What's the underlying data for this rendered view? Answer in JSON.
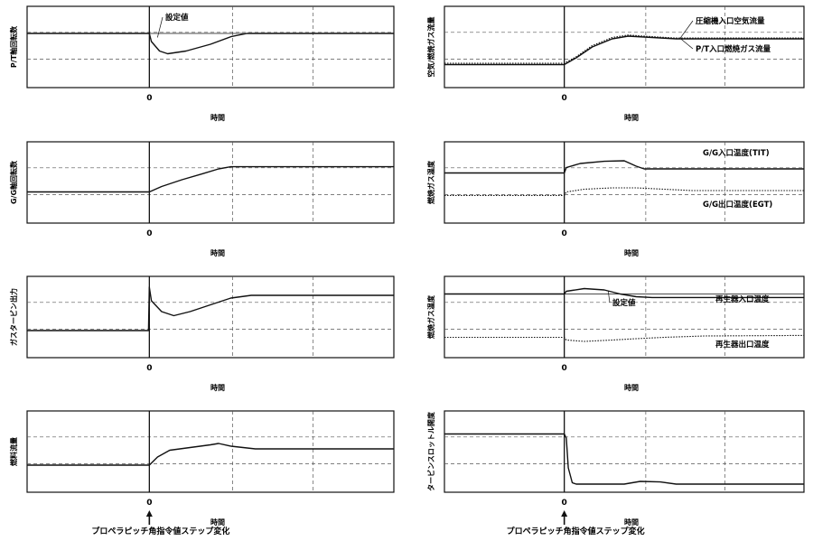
{
  "chart_data": [
    {
      "type": "line",
      "ylabel": "P/T軸回転数",
      "xlabel": "時間",
      "x_tick": "0",
      "annotations": [
        "設定値"
      ],
      "series": [
        {
          "name": "",
          "style": "solid",
          "points": [
            [
              -3,
              0.5
            ],
            [
              0,
              0.5
            ],
            [
              0.05,
              0.2
            ],
            [
              0.25,
              -0.15
            ],
            [
              0.45,
              -0.25
            ],
            [
              0.9,
              -0.15
            ],
            [
              1.5,
              0.1
            ],
            [
              2,
              0.38
            ],
            [
              2.4,
              0.5
            ],
            [
              6,
              0.5
            ]
          ]
        },
        {
          "name": "設定値",
          "style": "thin",
          "points": [
            [
              -3,
              0.5
            ],
            [
              6,
              0.5
            ]
          ]
        }
      ]
    },
    {
      "type": "line",
      "ylabel": "G/G軸回転数",
      "xlabel": "時間",
      "x_tick": "0",
      "annotations": [],
      "series": [
        {
          "name": "",
          "style": "solid",
          "points": [
            [
              -3,
              -0.35
            ],
            [
              0,
              -0.35
            ],
            [
              0.3,
              -0.15
            ],
            [
              0.8,
              0.1
            ],
            [
              1.3,
              0.32
            ],
            [
              1.7,
              0.5
            ],
            [
              2,
              0.58
            ],
            [
              6,
              0.58
            ]
          ]
        }
      ]
    },
    {
      "type": "line",
      "ylabel": "ガスタービン出力",
      "xlabel": "時間",
      "x_tick": "0",
      "annotations": [],
      "series": [
        {
          "name": "",
          "style": "solid",
          "points": [
            [
              -3,
              -0.5
            ],
            [
              -0.02,
              -0.5
            ],
            [
              0,
              1.1
            ],
            [
              0.05,
              0.6
            ],
            [
              0.3,
              0.2
            ],
            [
              0.6,
              0.05
            ],
            [
              1,
              0.2
            ],
            [
              1.6,
              0.5
            ],
            [
              2,
              0.7
            ],
            [
              2.5,
              0.8
            ],
            [
              6,
              0.8
            ]
          ]
        }
      ]
    },
    {
      "type": "line",
      "ylabel": "燃料流量",
      "xlabel": "時間",
      "x_tick": "0",
      "annotations": [],
      "series": [
        {
          "name": "",
          "style": "solid",
          "points": [
            [
              -3,
              -0.5
            ],
            [
              0,
              -0.5
            ],
            [
              0.2,
              -0.2
            ],
            [
              0.5,
              0.05
            ],
            [
              1,
              0.15
            ],
            [
              1.5,
              0.25
            ],
            [
              1.7,
              0.3
            ],
            [
              2,
              0.2
            ],
            [
              2.6,
              0.1
            ],
            [
              6,
              0.1
            ]
          ]
        }
      ]
    },
    {
      "type": "line",
      "ylabel": "空気/燃焼ガス流量",
      "xlabel": "時間",
      "x_tick": "0",
      "annotations": [
        "圧縮機入口空気流量",
        "P/T入口燃焼ガス流量"
      ],
      "series": [
        {
          "name": "圧縮機入口空気流量",
          "style": "solid",
          "points": [
            [
              -3,
              -0.65
            ],
            [
              0,
              -0.65
            ],
            [
              0.3,
              -0.4
            ],
            [
              0.7,
              0
            ],
            [
              1.2,
              0.3
            ],
            [
              1.6,
              0.4
            ],
            [
              2.2,
              0.35
            ],
            [
              2.8,
              0.3
            ],
            [
              6,
              0.3
            ]
          ]
        },
        {
          "name": "P/T入口燃焼ガス流量",
          "style": "dotted",
          "points": [
            [
              -3,
              -0.6
            ],
            [
              0,
              -0.6
            ],
            [
              0.3,
              -0.36
            ],
            [
              0.7,
              0.05
            ],
            [
              1.2,
              0.35
            ],
            [
              1.6,
              0.44
            ],
            [
              2.2,
              0.38
            ],
            [
              2.8,
              0.33
            ],
            [
              6,
              0.33
            ]
          ]
        }
      ]
    },
    {
      "type": "line",
      "ylabel": "燃焼ガス温度",
      "xlabel": "時間",
      "x_tick": "0",
      "annotations": [
        "G/G入口温度(TIT)",
        "G/G出口温度(EGT)"
      ],
      "series": [
        {
          "name": "G/G入口温度(TIT)",
          "style": "solid",
          "points": [
            [
              -3,
              0.35
            ],
            [
              0,
              0.35
            ],
            [
              0.05,
              0.55
            ],
            [
              0.4,
              0.7
            ],
            [
              1,
              0.78
            ],
            [
              1.5,
              0.8
            ],
            [
              1.8,
              0.6
            ],
            [
              2,
              0.5
            ],
            [
              6,
              0.5
            ]
          ]
        },
        {
          "name": "G/G出口温度(EGT)",
          "style": "dotted",
          "points": [
            [
              -3,
              -0.48
            ],
            [
              0,
              -0.48
            ],
            [
              0.05,
              -0.35
            ],
            [
              0.5,
              -0.25
            ],
            [
              1.2,
              -0.2
            ],
            [
              1.8,
              -0.2
            ],
            [
              2.5,
              -0.25
            ],
            [
              3.2,
              -0.3
            ],
            [
              6,
              -0.3
            ]
          ]
        }
      ]
    },
    {
      "type": "line",
      "ylabel": "燃焼ガス温度",
      "xlabel": "時間",
      "x_tick": "0",
      "annotations": [
        "設定値",
        "再生器入口温度",
        "再生器出口温度"
      ],
      "series": [
        {
          "name": "再生器入口温度",
          "style": "solid",
          "points": [
            [
              -3,
              0.85
            ],
            [
              0,
              0.85
            ],
            [
              0.05,
              0.95
            ],
            [
              0.5,
              1.05
            ],
            [
              1,
              1.0
            ],
            [
              1.4,
              0.85
            ],
            [
              1.8,
              0.75
            ],
            [
              2.2,
              0.72
            ],
            [
              6,
              0.72
            ]
          ]
        },
        {
          "name": "設定値",
          "style": "thin",
          "points": [
            [
              -3,
              0.85
            ],
            [
              6,
              0.85
            ]
          ]
        },
        {
          "name": "再生器出口温度",
          "style": "dotted",
          "points": [
            [
              -3,
              -0.75
            ],
            [
              0,
              -0.75
            ],
            [
              0.05,
              -0.85
            ],
            [
              0.5,
              -0.9
            ],
            [
              1.2,
              -0.85
            ],
            [
              1.8,
              -0.8
            ],
            [
              2.5,
              -0.75
            ],
            [
              3.5,
              -0.7
            ],
            [
              6,
              -0.68
            ]
          ]
        }
      ]
    },
    {
      "type": "line",
      "ylabel": "タービンスロットル開度",
      "xlabel": "時間",
      "x_tick": "0",
      "annotations": [],
      "series": [
        {
          "name": "",
          "style": "solid",
          "points": [
            [
              -3,
              0.65
            ],
            [
              0,
              0.65
            ],
            [
              0.05,
              0.5
            ],
            [
              0.1,
              -0.6
            ],
            [
              0.2,
              -1.15
            ],
            [
              0.3,
              -1.2
            ],
            [
              1.5,
              -1.2
            ],
            [
              1.9,
              -1.1
            ],
            [
              2.4,
              -1.12
            ],
            [
              2.8,
              -1.2
            ],
            [
              6,
              -1.2
            ]
          ]
        }
      ]
    }
  ],
  "captions": [
    "プロペラピッチ角指令値ステップ変化",
    "プロペラピッチ角指令値ステップ変化"
  ]
}
